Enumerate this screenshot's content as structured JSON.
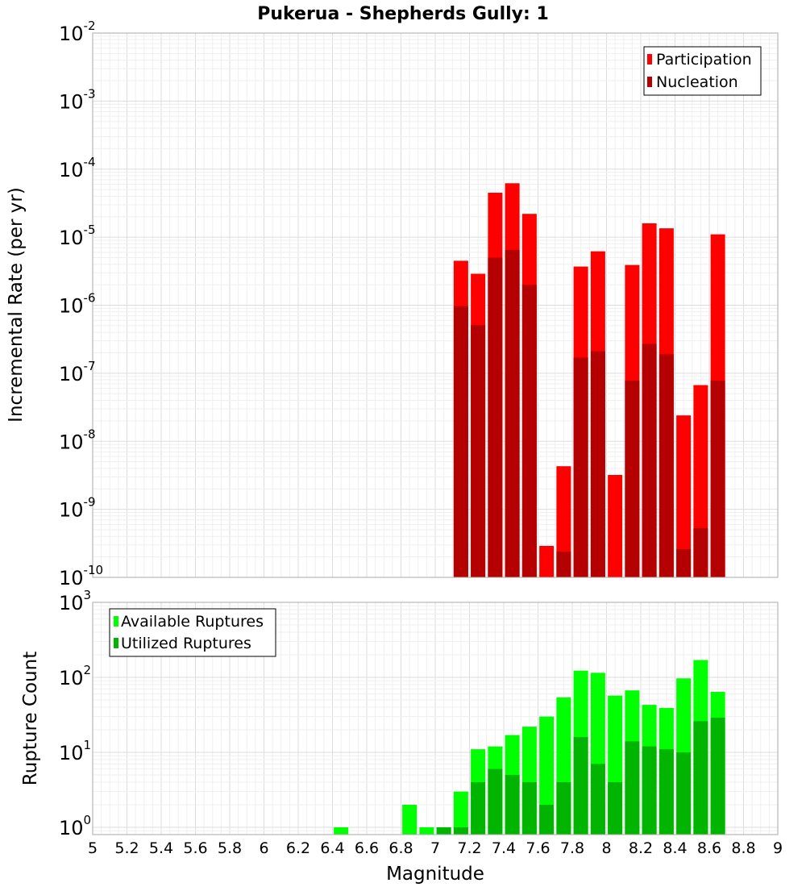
{
  "chart_data": [
    {
      "type": "bar",
      "title": "Pukerua - Shepherds Gully: 1",
      "xlabel": "",
      "ylabel": "Incremental Rate (per yr)",
      "xlim": [
        5,
        9
      ],
      "ylim": [
        1e-10,
        0.01
      ],
      "yscale": "log",
      "grid": true,
      "legend_position": "top-right",
      "series": [
        {
          "name": "Participation",
          "color": "#ff0000",
          "points": [
            {
              "x": 7.15,
              "y": 4.5e-06
            },
            {
              "x": 7.25,
              "y": 2.9e-06
            },
            {
              "x": 7.35,
              "y": 4.5e-05
            },
            {
              "x": 7.45,
              "y": 6.2e-05
            },
            {
              "x": 7.55,
              "y": 2.2e-05
            },
            {
              "x": 7.65,
              "y": 2.9e-10
            },
            {
              "x": 7.75,
              "y": 4.3e-09
            },
            {
              "x": 7.85,
              "y": 3.7e-06
            },
            {
              "x": 7.95,
              "y": 6.2e-06
            },
            {
              "x": 8.05,
              "y": 3.2e-09
            },
            {
              "x": 8.15,
              "y": 3.9e-06
            },
            {
              "x": 8.25,
              "y": 1.6e-05
            },
            {
              "x": 8.35,
              "y": 1.35e-05
            },
            {
              "x": 8.45,
              "y": 2.4e-08
            },
            {
              "x": 8.55,
              "y": 6.7e-08
            },
            {
              "x": 8.65,
              "y": 1.1e-05
            }
          ]
        },
        {
          "name": "Nucleation",
          "color": "#b40000",
          "points": [
            {
              "x": 7.15,
              "y": 9.7e-07
            },
            {
              "x": 7.25,
              "y": 5.1e-07
            },
            {
              "x": 7.35,
              "y": 5e-06
            },
            {
              "x": 7.45,
              "y": 6.5e-06
            },
            {
              "x": 7.55,
              "y": 2e-06
            },
            {
              "x": 7.75,
              "y": 2.4e-10
            },
            {
              "x": 7.85,
              "y": 1.7e-07
            },
            {
              "x": 7.95,
              "y": 2.1e-07
            },
            {
              "x": 8.15,
              "y": 7.8e-08
            },
            {
              "x": 8.25,
              "y": 2.7e-07
            },
            {
              "x": 8.35,
              "y": 1.9e-07
            },
            {
              "x": 8.45,
              "y": 2.6e-10
            },
            {
              "x": 8.55,
              "y": 5.3e-10
            },
            {
              "x": 8.65,
              "y": 7.8e-08
            }
          ]
        }
      ]
    },
    {
      "type": "bar",
      "title": "",
      "xlabel": "Magnitude",
      "ylabel": "Rupture Count",
      "xlim": [
        5,
        9
      ],
      "ylim": [
        0.8,
        1000
      ],
      "yscale": "log",
      "grid": true,
      "legend_position": "top-left",
      "x_ticks": [
        "5",
        "5.2",
        "5.4",
        "5.6",
        "5.8",
        "6",
        "6.2",
        "6.4",
        "6.6",
        "6.8",
        "7",
        "7.2",
        "7.4",
        "7.6",
        "7.8",
        "8",
        "8.2",
        "8.4",
        "8.6",
        "8.8",
        "9"
      ],
      "series": [
        {
          "name": "Available Ruptures",
          "color": "#00ff00",
          "points": [
            {
              "x": 6.45,
              "y": 1
            },
            {
              "x": 6.85,
              "y": 2
            },
            {
              "x": 6.95,
              "y": 1
            },
            {
              "x": 7.05,
              "y": 1
            },
            {
              "x": 7.15,
              "y": 3
            },
            {
              "x": 7.25,
              "y": 11
            },
            {
              "x": 7.35,
              "y": 12
            },
            {
              "x": 7.45,
              "y": 17
            },
            {
              "x": 7.55,
              "y": 22
            },
            {
              "x": 7.65,
              "y": 30
            },
            {
              "x": 7.75,
              "y": 54
            },
            {
              "x": 7.85,
              "y": 123
            },
            {
              "x": 7.95,
              "y": 115
            },
            {
              "x": 8.05,
              "y": 57
            },
            {
              "x": 8.15,
              "y": 67
            },
            {
              "x": 8.25,
              "y": 43
            },
            {
              "x": 8.35,
              "y": 39
            },
            {
              "x": 8.45,
              "y": 97
            },
            {
              "x": 8.55,
              "y": 170
            },
            {
              "x": 8.65,
              "y": 64
            }
          ]
        },
        {
          "name": "Utilized Ruptures",
          "color": "#00b400",
          "points": [
            {
              "x": 7.05,
              "y": 1
            },
            {
              "x": 7.15,
              "y": 1
            },
            {
              "x": 7.25,
              "y": 4
            },
            {
              "x": 7.35,
              "y": 6
            },
            {
              "x": 7.45,
              "y": 5
            },
            {
              "x": 7.55,
              "y": 4
            },
            {
              "x": 7.65,
              "y": 2
            },
            {
              "x": 7.75,
              "y": 4
            },
            {
              "x": 7.85,
              "y": 16
            },
            {
              "x": 7.95,
              "y": 7
            },
            {
              "x": 8.05,
              "y": 4
            },
            {
              "x": 8.15,
              "y": 14
            },
            {
              "x": 8.25,
              "y": 12
            },
            {
              "x": 8.35,
              "y": 11
            },
            {
              "x": 8.45,
              "y": 10
            },
            {
              "x": 8.55,
              "y": 26
            },
            {
              "x": 8.65,
              "y": 29
            }
          ]
        }
      ]
    }
  ]
}
